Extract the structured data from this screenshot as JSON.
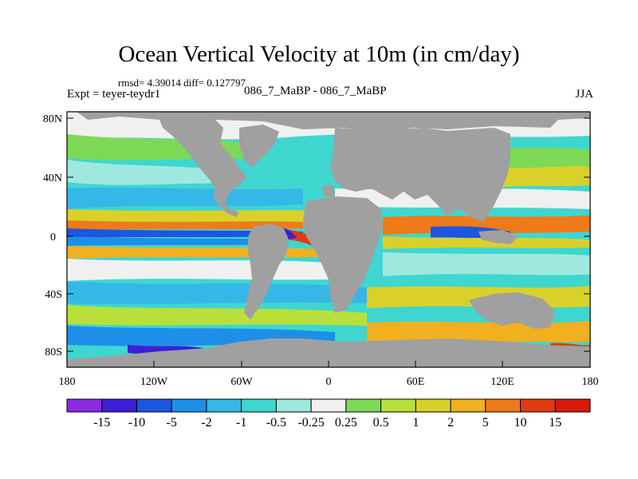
{
  "title": "Ocean Vertical Velocity at 10m (in cm/day)",
  "subtitle": "rmsd= 4.39014 diff= 0.127797",
  "left_label": "Expt = teyer-teydr1",
  "center_label": "086_7_MaBP - 086_7_MaBP",
  "right_label": "JJA",
  "lat_ticks": [
    "80N",
    "40N",
    "0",
    "40S",
    "80S"
  ],
  "lon_ticks": [
    "180",
    "120W",
    "60W",
    "0",
    "60E",
    "120E",
    "180"
  ],
  "colorbar": {
    "labels": [
      "-15",
      "-10",
      "-5",
      "-2",
      "-1",
      "-0.5",
      "-0.25",
      "0.25",
      "0.5",
      "1",
      "2",
      "5",
      "10",
      "15"
    ],
    "colors": [
      "#8a2be2",
      "#3c1fd6",
      "#1d56e0",
      "#1e8fe8",
      "#35b8e8",
      "#3fd6d0",
      "#9fe8e0",
      "#f0f0f0",
      "#7ed957",
      "#b9e03a",
      "#d9d12a",
      "#f0b020",
      "#f07a18",
      "#e03b10",
      "#d61a0a"
    ]
  },
  "land_color": "#a0a0a0"
}
